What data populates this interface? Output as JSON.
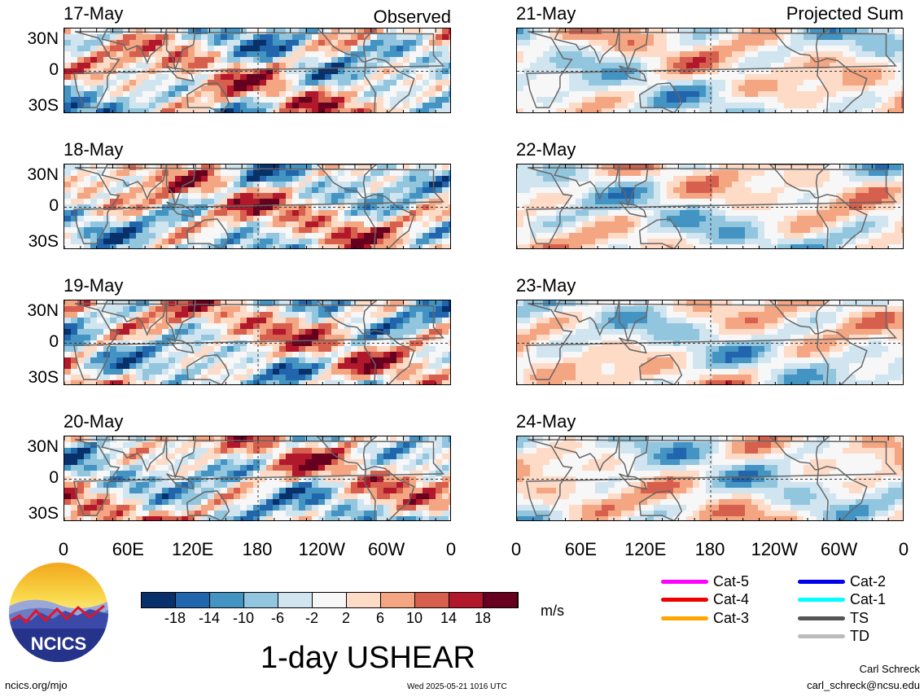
{
  "header": {
    "left_label": "Observed",
    "right_label": "Projected Sum"
  },
  "left_dates": [
    "17-May",
    "18-May",
    "19-May",
    "20-May"
  ],
  "right_dates": [
    "21-May",
    "22-May",
    "23-May",
    "24-May"
  ],
  "lat_labels": [
    "30N",
    "0",
    "30S"
  ],
  "lon_labels": [
    "0",
    "60E",
    "120E",
    "180",
    "120W",
    "60W",
    "0"
  ],
  "colorbar": {
    "labels": [
      "-18",
      "-14",
      "-10",
      "-6",
      "-2",
      "2",
      "6",
      "10",
      "14",
      "18"
    ],
    "colors": [
      "#08306b",
      "#2166ac",
      "#4393c3",
      "#92c5de",
      "#d1e5f0",
      "#f7f7f7",
      "#fddbc7",
      "#f4a582",
      "#d6604d",
      "#b2182b",
      "#67001f"
    ],
    "units": "m/s"
  },
  "title": "1-day USHEAR",
  "legend": [
    {
      "label": "Cat-5",
      "color": "#ff00ff"
    },
    {
      "label": "Cat-4",
      "color": "#ee0000"
    },
    {
      "label": "Cat-3",
      "color": "#ffa500"
    },
    {
      "label": "Cat-2",
      "color": "#0000ee"
    },
    {
      "label": "Cat-1",
      "color": "#00ffff"
    },
    {
      "label": "TS",
      "color": "#555555"
    },
    {
      "label": "TD",
      "color": "#bbbbbb"
    }
  ],
  "logo": {
    "text": "NCICS"
  },
  "footer": {
    "url": "ncics.org/mjo",
    "timestamp": "Wed 2025-05-21 1016 UTC",
    "author": "Carl Schreck",
    "email": "carl_schreck@ncsu.edu"
  }
}
